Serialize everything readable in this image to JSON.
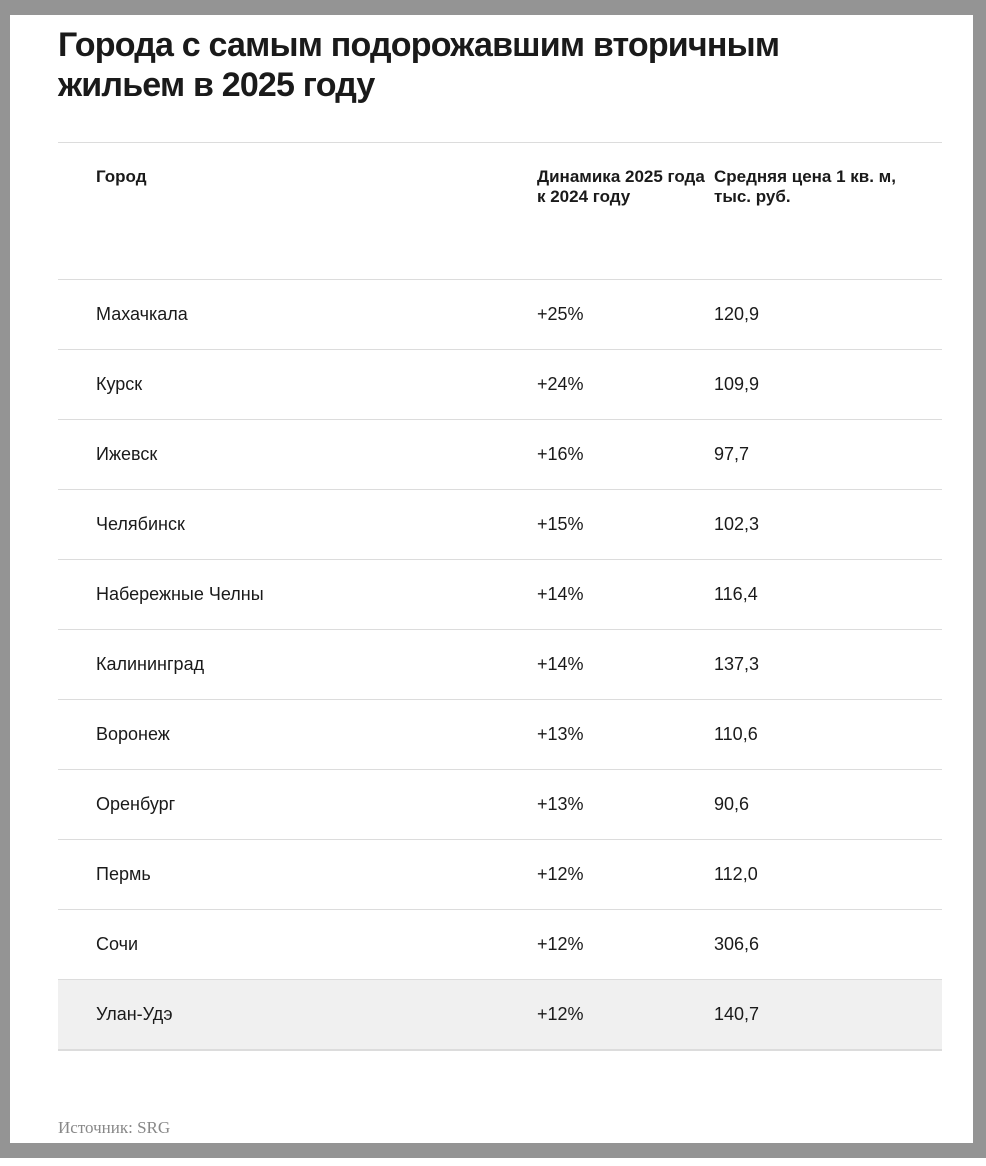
{
  "title": "Города с самым подорожавшим вторичным жильем в 2025 году",
  "table": {
    "headers": [
      "Город",
      "Динамика 2025 года к 2024 году",
      "Средняя цена 1 кв. м, тыс. руб."
    ],
    "rows": [
      [
        "Махачкала",
        "+25%",
        "120,9"
      ],
      [
        "Курск",
        "+24%",
        "109,9"
      ],
      [
        "Ижевск",
        "+16%",
        "97,7"
      ],
      [
        "Челябинск",
        "+15%",
        "102,3"
      ],
      [
        "Набережные Челны",
        "+14%",
        "116,4"
      ],
      [
        "Калининград",
        "+14%",
        "137,3"
      ],
      [
        "Воронеж",
        "+13%",
        "110,6"
      ],
      [
        "Оренбург",
        "+13%",
        "90,6"
      ],
      [
        "Пермь",
        "+12%",
        "112,0"
      ],
      [
        "Сочи",
        "+12%",
        "306,6"
      ],
      [
        "Улан-Удэ",
        "+12%",
        "140,7"
      ]
    ],
    "highlighted_row": 10
  },
  "source": "Источник: SRG",
  "colors": {
    "frame": "#949494",
    "highlight_row": "#f0f0f0",
    "divider": "#dcdcdc"
  }
}
